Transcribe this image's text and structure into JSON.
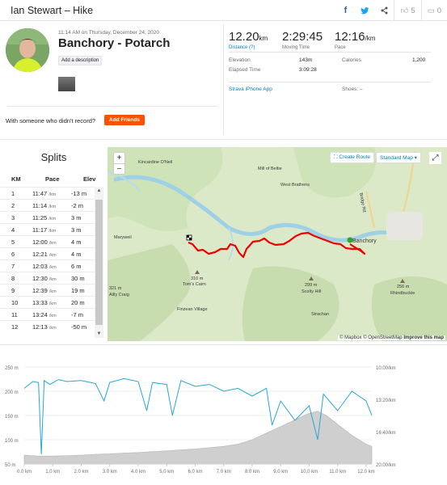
{
  "header": {
    "title": "Ian Stewart – Hike",
    "kudos_count": "5",
    "comment_count": "0"
  },
  "activity": {
    "date": "11:14 AM on Thursday, December 24, 2020",
    "name": "Banchory - Potarch",
    "add_description": "Add a description",
    "someone_text": "With someone who didn't record?",
    "add_friends": "Add Friends"
  },
  "stats": {
    "distance": {
      "value": "12.20",
      "unit": "km",
      "label": "Distance (?)"
    },
    "moving_time": {
      "value": "2:29:45",
      "label": "Moving Time"
    },
    "pace": {
      "value": "12:16",
      "unit": "/km",
      "label": "Pace"
    },
    "elevation_label": "Elevation",
    "elevation_value": "143m",
    "elapsed_label": "Elapsed Time",
    "elapsed_value": "3:09:28",
    "calories_label": "Calories",
    "calories_value": "1,200",
    "device": "Strava iPhone App",
    "shoes": "Shoes: –"
  },
  "splits": {
    "title": "Splits",
    "headers": {
      "km": "KM",
      "pace": "Pace",
      "elev": "Elev"
    },
    "pace_unit": "/km",
    "rows": [
      {
        "km": "1",
        "pace": "11:47",
        "elev": "-13 m"
      },
      {
        "km": "2",
        "pace": "11:14",
        "elev": "-2 m"
      },
      {
        "km": "3",
        "pace": "11:25",
        "elev": "3 m"
      },
      {
        "km": "4",
        "pace": "11:17",
        "elev": "3 m"
      },
      {
        "km": "5",
        "pace": "12:00",
        "elev": "4 m"
      },
      {
        "km": "6",
        "pace": "12:21",
        "elev": "4 m"
      },
      {
        "km": "7",
        "pace": "12:03",
        "elev": "6 m"
      },
      {
        "km": "8",
        "pace": "12:30",
        "elev": "30 m"
      },
      {
        "km": "9",
        "pace": "12:39",
        "elev": "19 m"
      },
      {
        "km": "10",
        "pace": "13:33",
        "elev": "20 m"
      },
      {
        "km": "11",
        "pace": "13:24",
        "elev": "-7 m"
      },
      {
        "km": "12",
        "pace": "12:13",
        "elev": "-50 m"
      }
    ]
  },
  "map": {
    "create_route": "Create Route",
    "map_style": "Standard Map",
    "attribution": "© Mapbox © OpenStreetMap",
    "improve": "Improve this map",
    "labels": {
      "kincardine": "Kincardine O'Neil",
      "mill_of_beltie": "Mill of Beltie",
      "west_brathens": "West Brathens",
      "maryweil": "Maryweil",
      "banchory": "Banchory",
      "peak_321": "321 m",
      "craig": "Ailly Craig",
      "peak_310": "310 m",
      "torns_cairn": "Tom's Cairn",
      "finzean": "Finzean Village",
      "peak_299": "299 m",
      "scolty": "Scolty Hill",
      "strachan": "Strachan",
      "peak_256": "256 m",
      "rhindbuckie": "Rhindbuckie",
      "road": "Bridge Rd"
    }
  },
  "chart_data": {
    "type": "area",
    "xlabel": "",
    "x_ticks": [
      "0.0 km",
      "1.0 km",
      "2.0 km",
      "3.0 km",
      "4.0 km",
      "5.0 km",
      "6.0 km",
      "7.0 km",
      "8.0 km",
      "9.0 km",
      "10.0 km",
      "11.0 km",
      "12.0 km"
    ],
    "y_left_ticks": [
      "250 m",
      "200 m",
      "150 m",
      "100 m",
      "50 m"
    ],
    "y_right_ticks": [
      "10:00/km",
      "13:20/km",
      "16:40/km",
      "20:00/km"
    ],
    "xlim": [
      0,
      12.2
    ],
    "elevation_ylim": [
      40,
      260
    ],
    "pace_ylim_min_per_km": [
      10.0,
      20.0
    ],
    "series": [
      {
        "kind": "elevation",
        "x": [
          0,
          0.5,
          1,
          1.5,
          2,
          2.5,
          3,
          3.5,
          4,
          4.5,
          5,
          5.5,
          6,
          6.5,
          7,
          7.5,
          8,
          8.5,
          9,
          9.5,
          10,
          10.3,
          10.6,
          11,
          11.5,
          12,
          12.2
        ],
        "values": [
          60,
          58,
          58,
          59,
          60,
          62,
          63,
          65,
          66,
          68,
          70,
          72,
          74,
          77,
          80,
          85,
          95,
          110,
          125,
          140,
          155,
          160,
          150,
          130,
          105,
          85,
          80
        ]
      },
      {
        "kind": "pace",
        "x": [
          0,
          0.3,
          0.5,
          0.6,
          0.7,
          0.9,
          1.2,
          1.5,
          2,
          2.5,
          2.8,
          3,
          3.5,
          4,
          4.3,
          4.5,
          5,
          5.2,
          5.5,
          6,
          6.5,
          7,
          7.5,
          8,
          8.5,
          8.7,
          9,
          9.5,
          10,
          10.3,
          10.5,
          11,
          11.5,
          12,
          12.2
        ],
        "values": [
          12.2,
          11.5,
          11.6,
          19.0,
          11.4,
          11.8,
          11.3,
          11.5,
          11.4,
          11.7,
          13.5,
          11.6,
          11.2,
          11.5,
          14.5,
          11.6,
          11.8,
          15.0,
          11.4,
          12.0,
          11.8,
          12.5,
          12.2,
          13.0,
          12.2,
          16.0,
          13.5,
          15.5,
          14.0,
          17.5,
          12.8,
          14.5,
          12.5,
          13.5,
          15.0
        ]
      }
    ]
  }
}
